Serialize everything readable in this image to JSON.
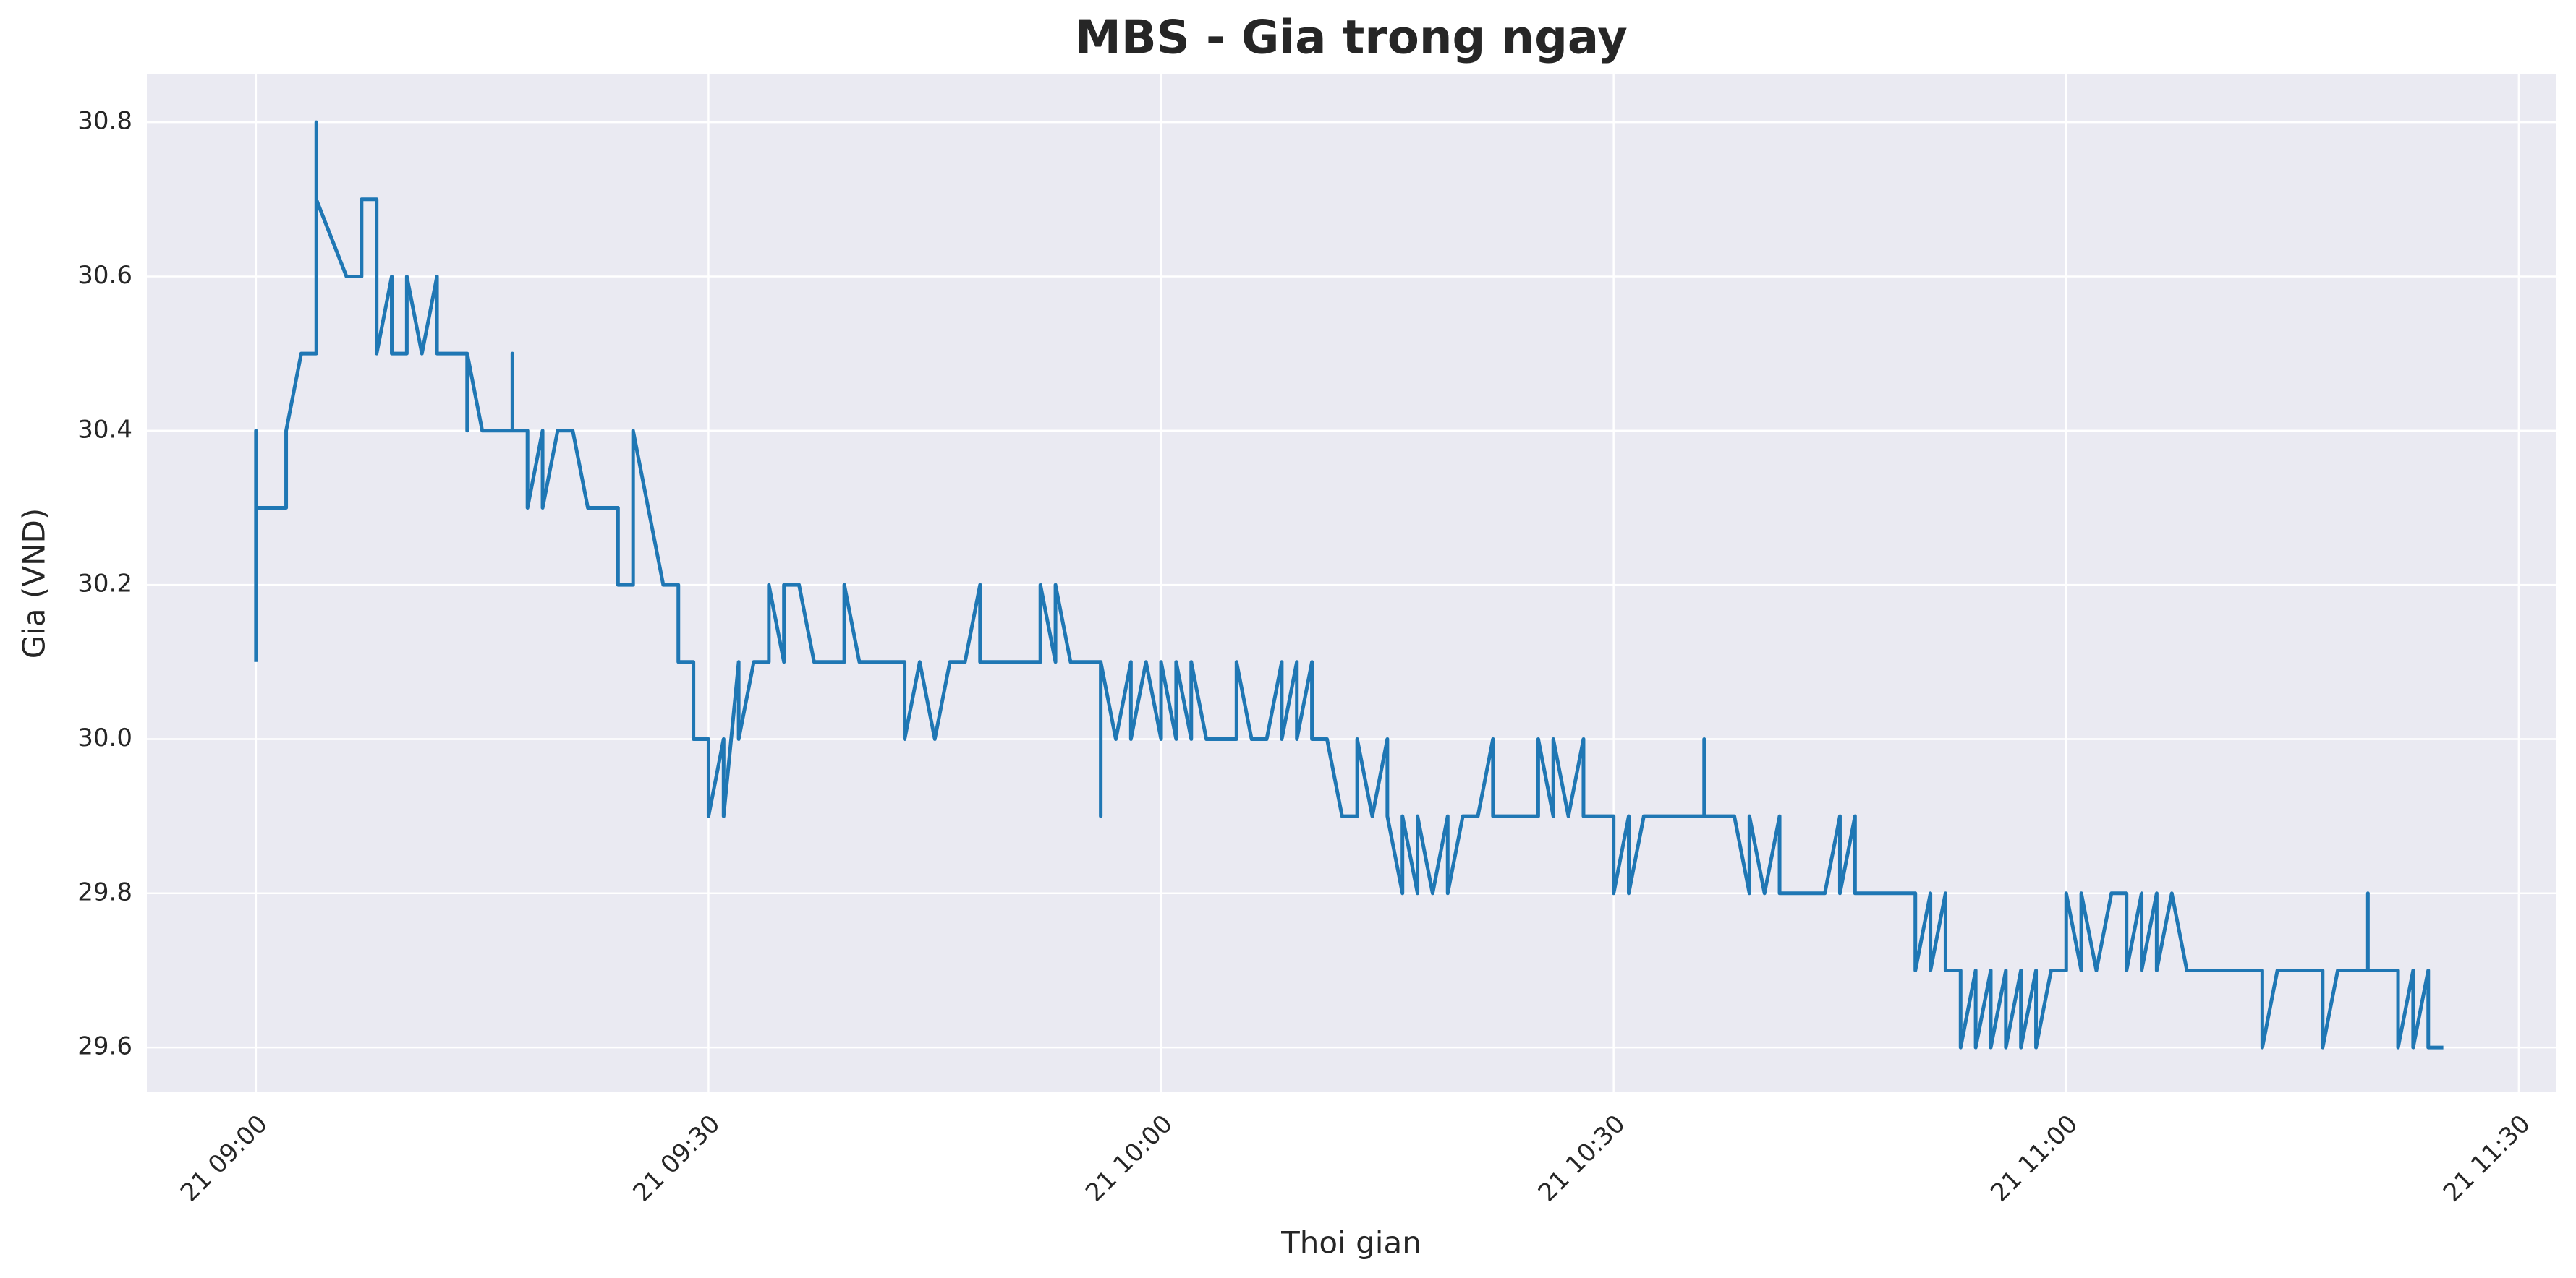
{
  "chart_data": {
    "type": "line",
    "title": "MBS - Gia trong ngay",
    "x_label": "Thoi gian",
    "y_label": "Gia (VND)",
    "color": "#1f77b4",
    "grid": true,
    "xlim": [
      "21 08:52:46",
      "21 11:32:30"
    ],
    "xticks": [
      "21 09:00",
      "21 09:30",
      "21 10:00",
      "21 10:30",
      "21 11:00",
      "21 11:30"
    ],
    "ylim": [
      29.542,
      30.862
    ],
    "yticks": [
      29.6,
      29.8,
      {
        "value": 30,
        "label": "30.0"
      },
      30.2,
      30.4,
      30.6,
      30.8
    ],
    "x": [
      "21 09:00",
      "21 09:00",
      "21 09:00",
      "21 09:02",
      "21 09:02",
      "21 09:03",
      "21 09:04",
      "21 09:04",
      "21 09:04",
      "21 09:06",
      "21 09:07",
      "21 09:07",
      "21 09:08",
      "21 09:08",
      "21 09:09",
      "21 09:09",
      "21 09:10",
      "21 09:10",
      "21 09:11",
      "21 09:12",
      "21 09:12",
      "21 09:14",
      "21 09:14",
      "21 09:14",
      "21 09:15",
      "21 09:17",
      "21 09:17",
      "21 09:17",
      "21 09:18",
      "21 09:18",
      "21 09:19",
      "21 09:19",
      "21 09:20",
      "21 09:21",
      "21 09:22",
      "21 09:24",
      "21 09:24",
      "21 09:25",
      "21 09:25",
      "21 09:26",
      "21 09:27",
      "21 09:28",
      "21 09:28",
      "21 09:29",
      "21 09:29",
      "21 09:30",
      "21 09:30",
      "21 09:31",
      "21 09:31",
      "21 09:32",
      "21 09:32",
      "21 09:33",
      "21 09:34",
      "21 09:34",
      "21 09:35",
      "21 09:35",
      "21 09:36",
      "21 09:37",
      "21 09:39",
      "21 09:39",
      "21 09:40",
      "21 09:43",
      "21 09:43",
      "21 09:44",
      "21 09:45",
      "21 09:46",
      "21 09:47",
      "21 09:48",
      "21 09:48",
      "21 09:52",
      "21 09:52",
      "21 09:53",
      "21 09:53",
      "21 09:54",
      "21 09:56",
      "21 09:56",
      "21 09:56",
      "21 09:57",
      "21 09:58",
      "21 09:58",
      "21 09:59",
      "21 10:00",
      "21 10:00",
      "21 10:01",
      "21 10:01",
      "21 10:02",
      "21 10:02",
      "21 10:03",
      "21 10:05",
      "21 10:05",
      "21 10:06",
      "21 10:07",
      "21 10:08",
      "21 10:08",
      "21 10:09",
      "21 10:09",
      "21 10:10",
      "21 10:10",
      "21 10:11",
      "21 10:12",
      "21 10:13",
      "21 10:13",
      "21 10:14",
      "21 10:15",
      "21 10:15",
      "21 10:16",
      "21 10:16",
      "21 10:17",
      "21 10:17",
      "21 10:18",
      "21 10:19",
      "21 10:19",
      "21 10:20",
      "21 10:21",
      "21 10:22",
      "21 10:22",
      "21 10:25",
      "21 10:25",
      "21 10:26",
      "21 10:26",
      "21 10:27",
      "21 10:28",
      "21 10:28",
      "21 10:30",
      "21 10:30",
      "21 10:31",
      "21 10:31",
      "21 10:32",
      "21 10:36",
      "21 10:36",
      "21 10:36",
      "21 10:38",
      "21 10:39",
      "21 10:39",
      "21 10:40",
      "21 10:41",
      "21 10:41",
      "21 10:44",
      "21 10:45",
      "21 10:45",
      "21 10:46",
      "21 10:46",
      "21 10:50",
      "21 10:50",
      "21 10:51",
      "21 10:51",
      "21 10:52",
      "21 10:52",
      "21 10:53",
      "21 10:53",
      "21 10:54",
      "21 10:54",
      "21 10:55",
      "21 10:55",
      "21 10:56",
      "21 10:56",
      "21 10:57",
      "21 10:57",
      "21 10:58",
      "21 10:58",
      "21 10:59",
      "21 11:00",
      "21 11:00",
      "21 11:01",
      "21 11:01",
      "21 11:02",
      "21 11:03",
      "21 11:04",
      "21 11:04",
      "21 11:05",
      "21 11:05",
      "21 11:06",
      "21 11:06",
      "21 11:07",
      "21 11:08",
      "21 11:13",
      "21 11:13",
      "21 11:14",
      "21 11:17",
      "21 11:17",
      "21 11:18",
      "21 11:20",
      "21 11:20",
      "21 11:20",
      "21 11:22",
      "21 11:22",
      "21 11:23",
      "21 11:23",
      "21 11:24",
      "21 11:24",
      "21 11:25"
    ],
    "values": [
      30.1,
      30.4,
      30.3,
      30.3,
      30.4,
      30.5,
      30.5,
      30.8,
      30.7,
      30.6,
      30.6,
      30.7,
      30.7,
      30.5,
      30.6,
      30.5,
      30.5,
      30.6,
      30.5,
      30.6,
      30.5,
      30.5,
      30.4,
      30.5,
      30.4,
      30.4,
      30.5,
      30.4,
      30.4,
      30.3,
      30.4,
      30.3,
      30.4,
      30.4,
      30.3,
      30.3,
      30.2,
      30.2,
      30.4,
      30.3,
      30.2,
      30.2,
      30.1,
      30.1,
      30.0,
      30.0,
      29.9,
      30.0,
      29.9,
      30.1,
      30.0,
      30.1,
      30.1,
      30.2,
      30.1,
      30.2,
      30.2,
      30.1,
      30.1,
      30.2,
      30.1,
      30.1,
      30.0,
      30.1,
      30.0,
      30.1,
      30.1,
      30.2,
      30.1,
      30.1,
      30.2,
      30.1,
      30.2,
      30.1,
      30.1,
      29.9,
      30.1,
      30.0,
      30.1,
      30.0,
      30.1,
      30.0,
      30.1,
      30.0,
      30.1,
      30.0,
      30.1,
      30.0,
      30.0,
      30.1,
      30.0,
      30.0,
      30.1,
      30.0,
      30.1,
      30.0,
      30.1,
      30.0,
      30.0,
      29.9,
      29.9,
      30.0,
      29.9,
      30.0,
      29.9,
      29.8,
      29.9,
      29.8,
      29.9,
      29.8,
      29.9,
      29.8,
      29.9,
      29.9,
      30.0,
      29.9,
      29.9,
      30.0,
      29.9,
      30.0,
      29.9,
      30.0,
      29.9,
      29.9,
      29.8,
      29.9,
      29.8,
      29.9,
      29.9,
      30.0,
      29.9,
      29.9,
      29.8,
      29.9,
      29.8,
      29.9,
      29.8,
      29.8,
      29.9,
      29.8,
      29.9,
      29.8,
      29.8,
      29.7,
      29.8,
      29.7,
      29.8,
      29.7,
      29.7,
      29.6,
      29.7,
      29.6,
      29.7,
      29.6,
      29.7,
      29.6,
      29.7,
      29.6,
      29.7,
      29.6,
      29.7,
      29.7,
      29.8,
      29.7,
      29.8,
      29.7,
      29.8,
      29.8,
      29.7,
      29.8,
      29.7,
      29.8,
      29.7,
      29.8,
      29.7,
      29.7,
      29.6,
      29.7,
      29.7,
      29.6,
      29.7,
      29.7,
      29.8,
      29.7,
      29.7,
      29.6,
      29.7,
      29.6,
      29.7,
      29.6,
      29.6
    ]
  }
}
